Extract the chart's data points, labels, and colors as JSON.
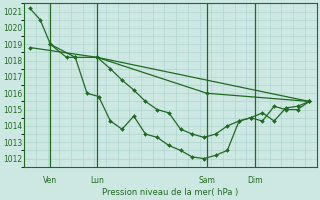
{
  "bg_color": "#cde8e3",
  "grid_color": "#b0d4ce",
  "line_color": "#1e6b1e",
  "marker_color": "#1e6b1e",
  "xlabel": "Pression niveau de la mer( hPa )",
  "xlabel_color": "#1e6b1e",
  "ylim": [
    1011.5,
    1021.5
  ],
  "yticks": [
    1012,
    1013,
    1014,
    1015,
    1016,
    1017,
    1018,
    1019,
    1020,
    1021
  ],
  "xlim": [
    0.0,
    1.0
  ],
  "vlines_x": [
    0.09,
    0.25,
    0.625,
    0.79
  ],
  "vline_labels": [
    "Ven",
    "Lun",
    "Sam",
    "Dim"
  ],
  "series": [
    {
      "x": [
        0.02,
        0.055,
        0.09,
        0.145,
        0.175,
        0.215,
        0.255,
        0.295,
        0.335,
        0.375,
        0.415,
        0.455,
        0.495,
        0.535,
        0.575,
        0.615,
        0.655,
        0.695,
        0.735,
        0.775,
        0.815,
        0.855,
        0.895,
        0.935,
        0.975
      ],
      "y": [
        1021.2,
        1020.5,
        1019.0,
        1018.2,
        1018.2,
        1016.0,
        1015.8,
        1014.3,
        1013.8,
        1014.6,
        1013.5,
        1013.3,
        1012.8,
        1012.5,
        1012.1,
        1012.0,
        1012.2,
        1012.5,
        1014.3,
        1014.5,
        1014.8,
        1014.3,
        1015.1,
        1015.2,
        1015.5
      ]
    },
    {
      "x": [
        0.25,
        0.295,
        0.335,
        0.375,
        0.415,
        0.455,
        0.495,
        0.535,
        0.575,
        0.615,
        0.655,
        0.695,
        0.735,
        0.775,
        0.815,
        0.855,
        0.895,
        0.935,
        0.975
      ],
      "y": [
        1018.2,
        1017.5,
        1016.8,
        1016.2,
        1015.5,
        1015.0,
        1014.8,
        1013.8,
        1013.5,
        1013.3,
        1013.5,
        1014.0,
        1014.3,
        1014.5,
        1014.3,
        1015.2,
        1015.0,
        1015.0,
        1015.5
      ]
    },
    {
      "x": [
        0.02,
        0.25,
        0.625,
        0.975
      ],
      "y": [
        1018.8,
        1018.2,
        1016.0,
        1015.5
      ]
    },
    {
      "x": [
        0.09,
        0.175,
        0.25,
        0.975
      ],
      "y": [
        1019.0,
        1018.2,
        1018.2,
        1015.5
      ]
    }
  ]
}
